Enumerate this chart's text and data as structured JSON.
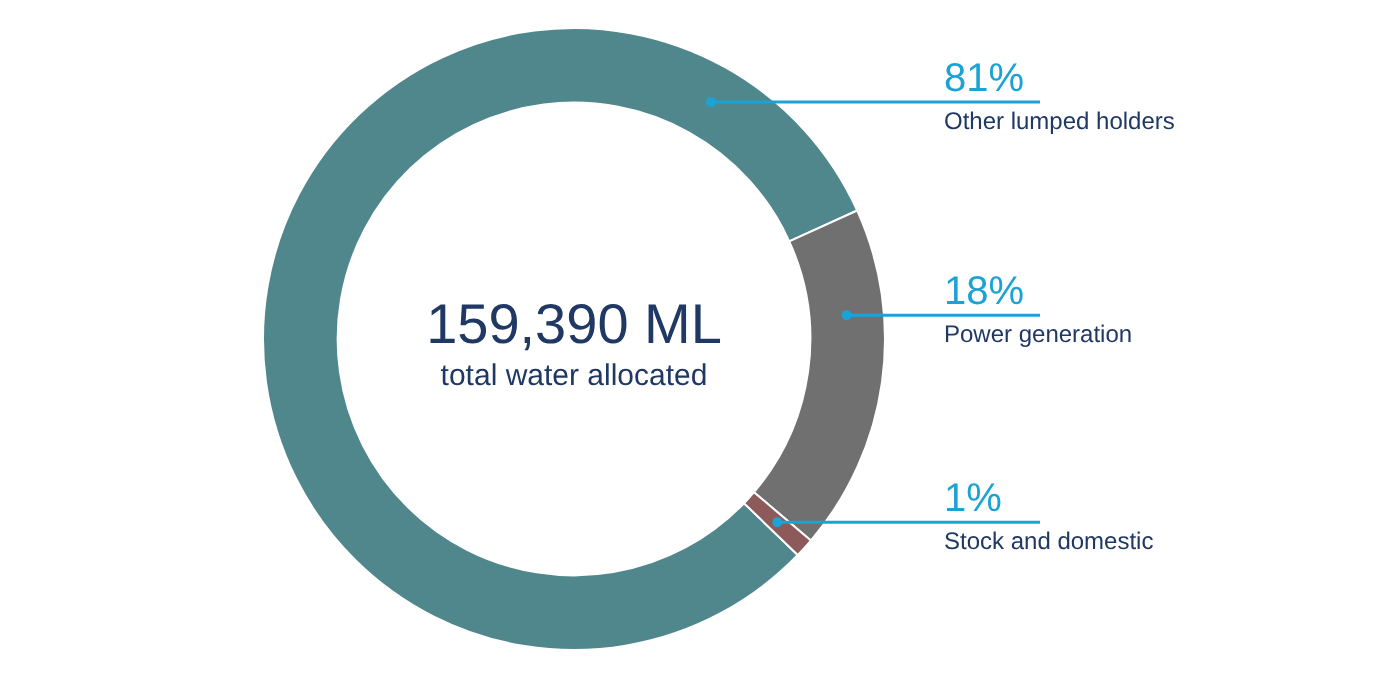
{
  "chart_data": {
    "type": "donut",
    "categories": [
      "Other lumped holders",
      "Power generation",
      "Stock and domestic"
    ],
    "values": [
      81,
      18,
      1
    ],
    "colors": [
      "#4f878c",
      "#707070",
      "#8c5a5a"
    ],
    "value_labels": [
      "81%",
      "18%",
      "1%"
    ],
    "annotations": [
      "159,390 ML",
      "total water allocated"
    ]
  }
}
